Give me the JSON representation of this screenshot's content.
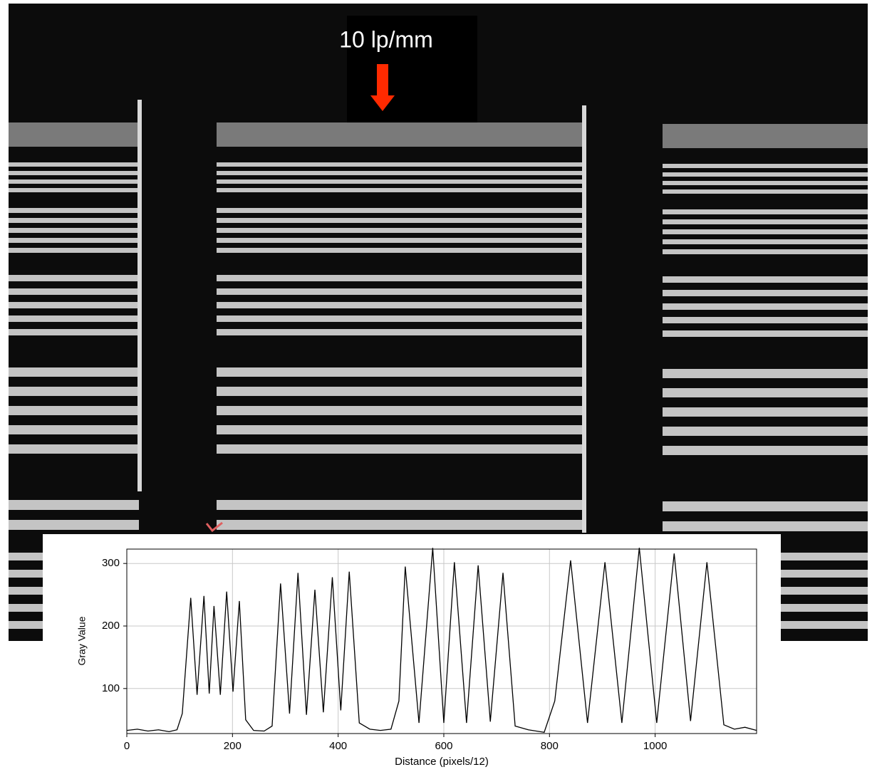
{
  "chart_data": {
    "type": "line",
    "annotation": "10 lp/mm",
    "xlabel": "Distance (pixels/12)",
    "ylabel": "Gray Value",
    "x": [
      0,
      20,
      40,
      60,
      80,
      95,
      105,
      121,
      133,
      146,
      156,
      165,
      177,
      189,
      201,
      213,
      225,
      240,
      260,
      275,
      291,
      308,
      324,
      340,
      356,
      372,
      389,
      405,
      421,
      440,
      460,
      480,
      500,
      515,
      527,
      553,
      579,
      600,
      620,
      643,
      665,
      688,
      712,
      735,
      760,
      790,
      810,
      840,
      872,
      905,
      937,
      970,
      1003,
      1036,
      1067,
      1098,
      1130,
      1150,
      1170,
      1192
    ],
    "values": [
      33,
      35,
      32,
      34,
      31,
      34,
      60,
      245,
      90,
      248,
      92,
      232,
      90,
      255,
      95,
      240,
      50,
      33,
      32,
      40,
      268,
      60,
      285,
      58,
      258,
      62,
      278,
      65,
      287,
      45,
      35,
      33,
      35,
      80,
      295,
      45,
      325,
      45,
      302,
      45,
      297,
      47,
      285,
      40,
      34,
      30,
      80,
      305,
      45,
      302,
      45,
      325,
      45,
      316,
      48,
      302,
      42,
      35,
      38,
      33
    ],
    "color": "#000000",
    "xlim": [
      0,
      1192
    ],
    "ylim": [
      28,
      323
    ],
    "xticks": [
      0,
      200,
      400,
      600,
      800,
      1000
    ],
    "yticks": [
      100,
      200,
      300
    ],
    "grid": true
  }
}
